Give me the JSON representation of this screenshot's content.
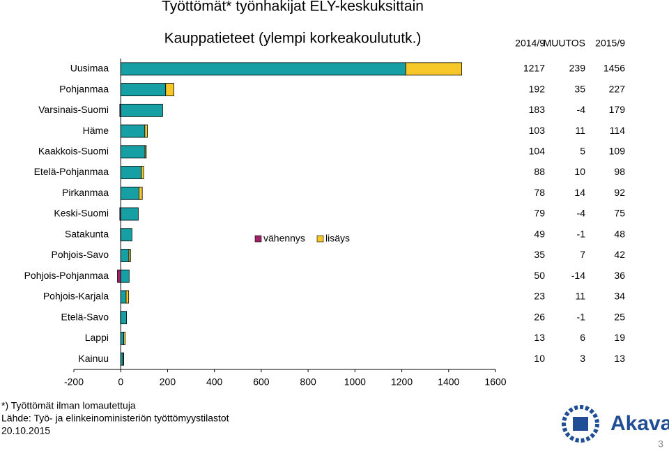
{
  "chart_data": {
    "type": "bar",
    "title": "Työttömät* työnhakijat ELY-keskuksittain",
    "subtitle": "Kauppatieteet (ylempi korkeakoulututk.)",
    "categories": [
      "Uusimaa",
      "Pohjanmaa",
      "Varsinais-Suomi",
      "Häme",
      "Kaakkois-Suomi",
      "Etelä-Pohjanmaa",
      "Pirkanmaa",
      "Keski-Suomi",
      "Satakunta",
      "Pohjois-Savo",
      "Pohjois-Pohjanmaa",
      "Pohjois-Karjala",
      "Etelä-Savo",
      "Lappi",
      "Kainuu"
    ],
    "series": [
      {
        "name": "2014/9",
        "color": "#17a0a4",
        "values": [
          1217,
          192,
          183,
          103,
          104,
          88,
          78,
          79,
          49,
          35,
          50,
          23,
          26,
          13,
          10
        ]
      },
      {
        "name": "MUUTOS",
        "values": [
          239,
          35,
          -4,
          11,
          5,
          10,
          14,
          -4,
          -1,
          7,
          -14,
          11,
          -1,
          6,
          3
        ]
      },
      {
        "name": "2015/9",
        "values": [
          1456,
          227,
          179,
          114,
          109,
          98,
          92,
          75,
          48,
          42,
          36,
          34,
          25,
          19,
          13
        ]
      }
    ],
    "legend": [
      {
        "name": "vähennys",
        "color": "#a3216b"
      },
      {
        "name": "lisäys",
        "color": "#f7c72a"
      }
    ],
    "xlim": [
      -200,
      1600
    ],
    "xticks": [
      -200,
      0,
      200,
      400,
      600,
      800,
      1000,
      1200,
      1400,
      1600
    ],
    "notes": [
      "*) Työttömät ilman lomautettuja",
      "Lähde: Työ- ja elinkeinoministeriön työttömyystilastot",
      "20.10.2015"
    ],
    "logo": "Akava",
    "page_number": "3"
  }
}
